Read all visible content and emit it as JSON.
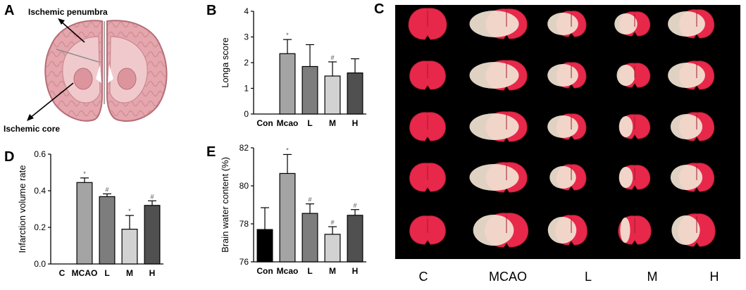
{
  "panels": {
    "a": "A",
    "b": "B",
    "c": "C",
    "d": "D",
    "e": "E"
  },
  "panel_a": {
    "label_penumbra": "Ischemic penumbra",
    "label_core": "Ischemic core"
  },
  "panel_c": {
    "columns": [
      "C",
      "MCAO",
      "L",
      "M",
      "H"
    ],
    "colors": {
      "background": "#000000",
      "infarct_free": "#e8284a",
      "infarct": "#f2e4d4"
    },
    "infarct_fraction": [
      [
        0.0,
        0.55,
        0.35,
        0.25,
        0.35
      ],
      [
        0.0,
        0.5,
        0.35,
        0.2,
        0.35
      ],
      [
        0.0,
        0.45,
        0.35,
        0.15,
        0.3
      ],
      [
        0.0,
        0.45,
        0.3,
        0.15,
        0.3
      ],
      [
        0.0,
        0.3,
        0.3,
        0.1,
        0.25
      ]
    ]
  },
  "chart_data": [
    {
      "id": "B",
      "type": "bar",
      "categories": [
        "Con",
        "Mcao",
        "L",
        "M",
        "H"
      ],
      "values": [
        0,
        2.35,
        1.85,
        1.48,
        1.6
      ],
      "errors": [
        0,
        0.55,
        0.85,
        0.55,
        0.55
      ],
      "markers": [
        "",
        "*",
        "",
        "#",
        ""
      ],
      "colors": [
        "#000000",
        "#a4a4a4",
        "#7d7d7d",
        "#d2d2d2",
        "#505050"
      ],
      "ylabel": "Longa score",
      "ylim": [
        0,
        4
      ],
      "yticks": [
        "0",
        "1",
        "2",
        "3",
        "4"
      ]
    },
    {
      "id": "D",
      "type": "bar",
      "categories": [
        "C",
        "MCAO",
        "L",
        "M",
        "H"
      ],
      "values": [
        0,
        0.445,
        0.368,
        0.19,
        0.32
      ],
      "errors": [
        0,
        0.025,
        0.015,
        0.075,
        0.025
      ],
      "markers": [
        "",
        "*",
        "#",
        "*",
        "#"
      ],
      "colors": [
        "#000000",
        "#a4a4a4",
        "#7d7d7d",
        "#d2d2d2",
        "#505050"
      ],
      "ylabel": "Infarction volume rate",
      "ylim": [
        0,
        0.6
      ],
      "yticks": [
        "0.0",
        "0.2",
        "0.4",
        "0.6"
      ]
    },
    {
      "id": "E",
      "type": "bar",
      "categories": [
        "Con",
        "Mcao",
        "L",
        "M",
        "H"
      ],
      "values": [
        77.7,
        80.65,
        78.55,
        77.45,
        78.45
      ],
      "errors": [
        1.15,
        1.0,
        0.5,
        0.4,
        0.3
      ],
      "markers": [
        "",
        "*",
        "#",
        "#",
        "#"
      ],
      "colors": [
        "#000000",
        "#a4a4a4",
        "#7d7d7d",
        "#d2d2d2",
        "#505050"
      ],
      "ylabel": "Brain water content (%)",
      "ylim": [
        76,
        82
      ],
      "yticks": [
        "76",
        "78",
        "80",
        "82"
      ]
    }
  ]
}
